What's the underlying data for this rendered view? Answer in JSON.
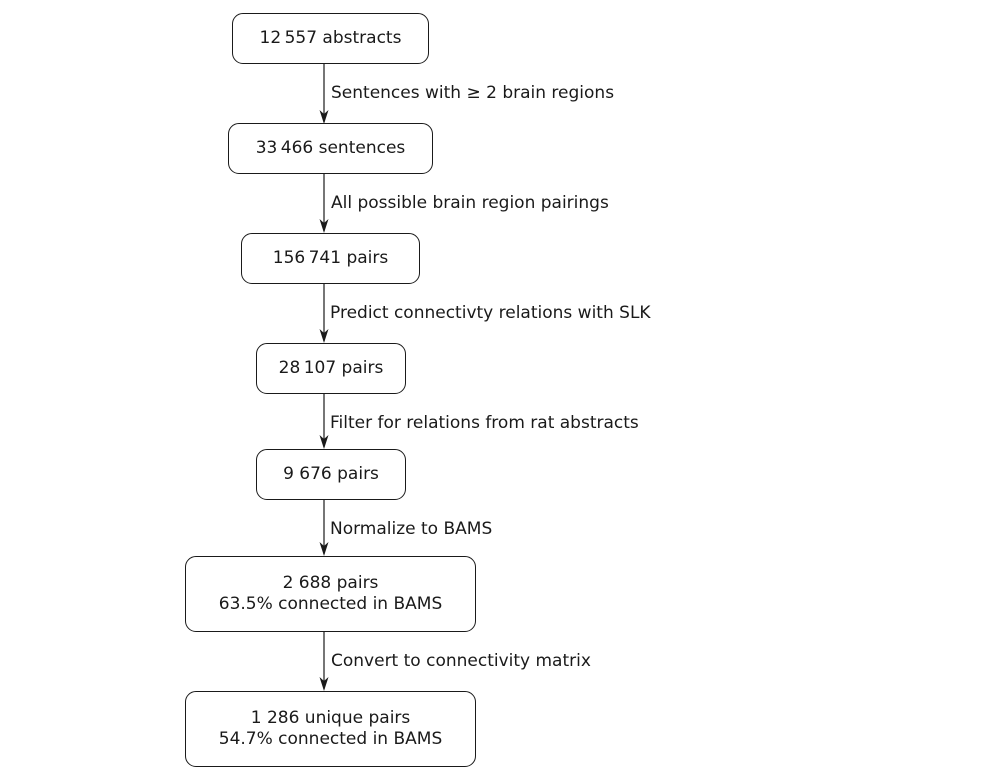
{
  "nodes": [
    {
      "id": "abstracts",
      "lines": [
        "12 557 abstracts"
      ]
    },
    {
      "id": "sentences",
      "lines": [
        "33 466 sentences"
      ]
    },
    {
      "id": "pairs-all",
      "lines": [
        "156 741 pairs"
      ]
    },
    {
      "id": "pairs-predicted",
      "lines": [
        "28 107 pairs"
      ]
    },
    {
      "id": "pairs-rat",
      "lines": [
        "9 676 pairs"
      ]
    },
    {
      "id": "pairs-normalized",
      "lines": [
        "2 688 pairs",
        "63.5% connected in BAMS"
      ]
    },
    {
      "id": "pairs-unique",
      "lines": [
        "1 286 unique pairs",
        "54.7% connected in BAMS"
      ]
    }
  ],
  "edges": [
    {
      "from": "abstracts",
      "to": "sentences",
      "label": "Sentences with ≥ 2 brain regions"
    },
    {
      "from": "sentences",
      "to": "pairs-all",
      "label": "All possible brain region pairings"
    },
    {
      "from": "pairs-all",
      "to": "pairs-predicted",
      "label": "Predict connectivty relations with SLK"
    },
    {
      "from": "pairs-predicted",
      "to": "pairs-rat",
      "label": "Filter for relations from rat abstracts"
    },
    {
      "from": "pairs-rat",
      "to": "pairs-normalized",
      "label": "Normalize to BAMS"
    },
    {
      "from": "pairs-normalized",
      "to": "pairs-unique",
      "label": "Convert to connectivity matrix"
    }
  ]
}
